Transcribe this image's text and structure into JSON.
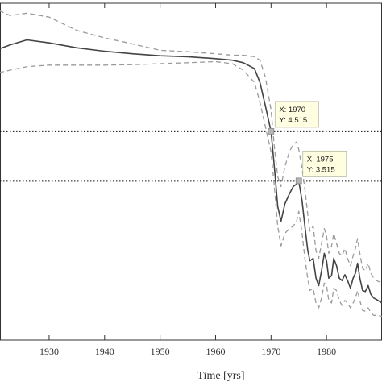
{
  "chart_data": {
    "type": "line",
    "xlabel": "Time [yrs]",
    "ylabel": "",
    "title": "",
    "xlim": [
      1921,
      1990
    ],
    "ylim": [
      0.3,
      7.1
    ],
    "grid": false,
    "x_ticks": [
      1930,
      1940,
      1950,
      1960,
      1970,
      1980
    ],
    "x_tick_labels": [
      "1930",
      "1940",
      "1950",
      "1960",
      "1970",
      "1980"
    ],
    "series": [
      {
        "role": "estimate",
        "style": "solid",
        "color": "#444444",
        "points": [
          [
            1921,
            6.18
          ],
          [
            1923,
            6.26
          ],
          [
            1926,
            6.36
          ],
          [
            1930,
            6.3
          ],
          [
            1935,
            6.2
          ],
          [
            1940,
            6.13
          ],
          [
            1945,
            6.08
          ],
          [
            1950,
            6.04
          ],
          [
            1955,
            6.02
          ],
          [
            1960,
            5.98
          ],
          [
            1963,
            5.95
          ],
          [
            1965,
            5.9
          ],
          [
            1967,
            5.78
          ],
          [
            1968,
            5.5
          ],
          [
            1969,
            5.02
          ],
          [
            1970,
            4.515
          ],
          [
            1970.6,
            3.8
          ],
          [
            1971.2,
            3.0
          ],
          [
            1971.8,
            2.7
          ],
          [
            1972.5,
            3.05
          ],
          [
            1973.3,
            3.25
          ],
          [
            1974,
            3.4
          ],
          [
            1974.6,
            3.45
          ],
          [
            1975,
            3.515
          ],
          [
            1975.6,
            3.1
          ],
          [
            1976.1,
            2.6
          ],
          [
            1976.6,
            2.12
          ],
          [
            1977,
            1.9
          ],
          [
            1977.6,
            1.95
          ],
          [
            1978.1,
            1.55
          ],
          [
            1978.6,
            1.4
          ],
          [
            1979.1,
            1.7
          ],
          [
            1979.6,
            2.05
          ],
          [
            1980,
            1.9
          ],
          [
            1980.4,
            1.55
          ],
          [
            1980.9,
            1.6
          ],
          [
            1981.3,
            1.95
          ],
          [
            1981.8,
            1.8
          ],
          [
            1982.3,
            1.55
          ],
          [
            1982.8,
            1.5
          ],
          [
            1983.3,
            1.62
          ],
          [
            1983.8,
            1.5
          ],
          [
            1984.3,
            1.35
          ],
          [
            1984.8,
            1.55
          ],
          [
            1985.2,
            1.65
          ],
          [
            1985.6,
            1.85
          ],
          [
            1986,
            1.55
          ],
          [
            1986.5,
            1.3
          ],
          [
            1987,
            1.28
          ],
          [
            1987.5,
            1.4
          ],
          [
            1988,
            1.22
          ],
          [
            1988.5,
            1.15
          ],
          [
            1989,
            1.12
          ],
          [
            1990,
            1.05
          ]
        ]
      },
      {
        "role": "upper-bound",
        "style": "dashed",
        "color": "#9a9a9a",
        "points": [
          [
            1921,
            6.95
          ],
          [
            1923,
            6.85
          ],
          [
            1926,
            6.9
          ],
          [
            1930,
            6.82
          ],
          [
            1935,
            6.55
          ],
          [
            1940,
            6.4
          ],
          [
            1945,
            6.28
          ],
          [
            1950,
            6.15
          ],
          [
            1955,
            6.12
          ],
          [
            1960,
            6.08
          ],
          [
            1963,
            6.05
          ],
          [
            1965,
            6.05
          ],
          [
            1967,
            6.02
          ],
          [
            1968,
            5.95
          ],
          [
            1969,
            5.6
          ],
          [
            1970,
            4.95
          ],
          [
            1970.6,
            4.2
          ],
          [
            1971.2,
            3.6
          ],
          [
            1971.8,
            3.4
          ],
          [
            1972.5,
            3.8
          ],
          [
            1973.3,
            4.1
          ],
          [
            1974,
            4.25
          ],
          [
            1974.6,
            4.3
          ],
          [
            1975,
            4.15
          ],
          [
            1975.6,
            3.75
          ],
          [
            1976.1,
            3.35
          ],
          [
            1976.6,
            2.85
          ],
          [
            1977,
            2.5
          ],
          [
            1977.6,
            2.6
          ],
          [
            1978.1,
            2.1
          ],
          [
            1978.6,
            1.95
          ],
          [
            1979.1,
            2.25
          ],
          [
            1979.6,
            2.55
          ],
          [
            1980,
            2.4
          ],
          [
            1980.4,
            2.05
          ],
          [
            1980.9,
            2.2
          ],
          [
            1981.3,
            2.45
          ],
          [
            1981.8,
            2.25
          ],
          [
            1982.3,
            2.05
          ],
          [
            1982.8,
            2.0
          ],
          [
            1983.3,
            2.15
          ],
          [
            1983.8,
            1.95
          ],
          [
            1984.3,
            1.8
          ],
          [
            1984.8,
            2.0
          ],
          [
            1985.2,
            2.15
          ],
          [
            1985.6,
            2.35
          ],
          [
            1986,
            2.05
          ],
          [
            1986.5,
            1.75
          ],
          [
            1987,
            1.7
          ],
          [
            1987.5,
            1.85
          ],
          [
            1988,
            1.65
          ],
          [
            1988.5,
            1.55
          ],
          [
            1989,
            1.5
          ],
          [
            1990,
            1.45
          ]
        ]
      },
      {
        "role": "lower-bound",
        "style": "dashed",
        "color": "#9a9a9a",
        "points": [
          [
            1921,
            5.7
          ],
          [
            1923,
            5.75
          ],
          [
            1926,
            5.82
          ],
          [
            1930,
            5.85
          ],
          [
            1935,
            5.85
          ],
          [
            1940,
            5.85
          ],
          [
            1945,
            5.86
          ],
          [
            1950,
            5.88
          ],
          [
            1955,
            5.9
          ],
          [
            1960,
            5.92
          ],
          [
            1963,
            5.88
          ],
          [
            1965,
            5.75
          ],
          [
            1967,
            5.5
          ],
          [
            1968,
            5.1
          ],
          [
            1969,
            4.6
          ],
          [
            1970,
            4.1
          ],
          [
            1970.6,
            3.4
          ],
          [
            1971.2,
            2.6
          ],
          [
            1971.8,
            2.2
          ],
          [
            1972.5,
            2.45
          ],
          [
            1973.3,
            2.55
          ],
          [
            1974,
            2.6
          ],
          [
            1974.6,
            2.7
          ],
          [
            1975,
            2.9
          ],
          [
            1975.6,
            2.45
          ],
          [
            1976.1,
            1.95
          ],
          [
            1976.6,
            1.55
          ],
          [
            1977,
            1.3
          ],
          [
            1977.6,
            1.35
          ],
          [
            1978.1,
            1.05
          ],
          [
            1978.6,
            0.95
          ],
          [
            1979.1,
            1.15
          ],
          [
            1979.6,
            1.45
          ],
          [
            1980,
            1.4
          ],
          [
            1980.4,
            1.1
          ],
          [
            1980.9,
            1.05
          ],
          [
            1981.3,
            1.35
          ],
          [
            1981.8,
            1.3
          ],
          [
            1982.3,
            1.1
          ],
          [
            1982.8,
            1.0
          ],
          [
            1983.3,
            1.1
          ],
          [
            1983.8,
            1.05
          ],
          [
            1984.3,
            0.95
          ],
          [
            1984.8,
            1.05
          ],
          [
            1985.2,
            1.15
          ],
          [
            1985.6,
            1.3
          ],
          [
            1986,
            1.1
          ],
          [
            1986.5,
            0.9
          ],
          [
            1987,
            0.88
          ],
          [
            1987.5,
            0.95
          ],
          [
            1988,
            0.85
          ],
          [
            1988.5,
            0.8
          ],
          [
            1989,
            0.8
          ],
          [
            1990,
            0.78
          ]
        ]
      }
    ],
    "reference_lines": [
      {
        "y": 4.515,
        "style": "dotted",
        "color": "#111111"
      },
      {
        "y": 3.515,
        "style": "dotted",
        "color": "#111111"
      }
    ],
    "datatips": [
      {
        "x": 1970,
        "y": 4.515,
        "x_text": "X: 1970",
        "y_text": "Y: 4.515"
      },
      {
        "x": 1975,
        "y": 3.515,
        "x_text": "X: 1975",
        "y_text": "Y: 3.515"
      }
    ]
  }
}
